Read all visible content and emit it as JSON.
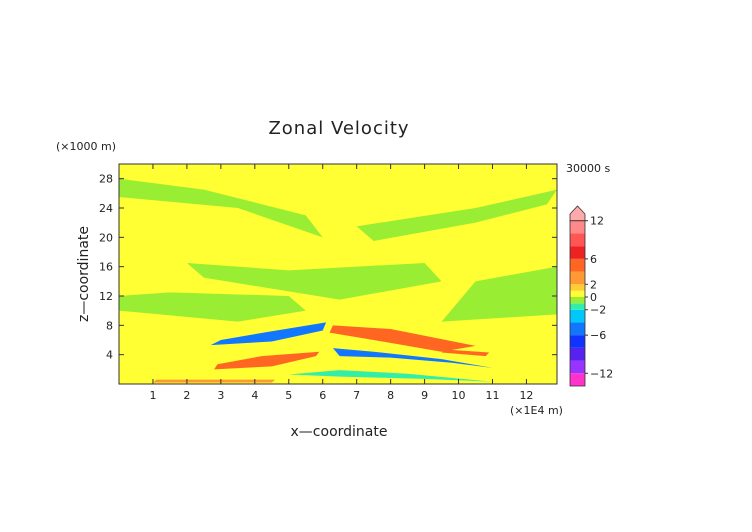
{
  "chart_data": {
    "type": "heatmap",
    "title": "Zonal Velocity",
    "xlabel": "x—coordinate",
    "ylabel": "z—coordinate",
    "x_unit": "(×1E4 m)",
    "y_unit": "(×1000 m)",
    "time_label": "30000 s",
    "xlim": [
      0,
      12.9
    ],
    "ylim": [
      0,
      30
    ],
    "x_ticks": [
      "1",
      "2",
      "3",
      "4",
      "5",
      "6",
      "7",
      "8",
      "9",
      "10",
      "11",
      "12"
    ],
    "y_ticks": [
      "4",
      "8",
      "12",
      "16",
      "20",
      "24",
      "28"
    ],
    "colorbar": {
      "tick_labels": [
        "12",
        "6",
        "2",
        "0",
        "−2",
        "−6",
        "−12"
      ],
      "levels": [
        {
          "min": -14,
          "max": -12,
          "color": "#ff33cc"
        },
        {
          "min": -12,
          "max": -10,
          "color": "#9933ff"
        },
        {
          "min": -10,
          "max": -8,
          "color": "#5522ee"
        },
        {
          "min": -8,
          "max": -6,
          "color": "#1133ff"
        },
        {
          "min": -6,
          "max": -4,
          "color": "#1177ff"
        },
        {
          "min": -4,
          "max": -2,
          "color": "#00c8ff"
        },
        {
          "min": -2,
          "max": -1,
          "color": "#33eeaa"
        },
        {
          "min": -1,
          "max": 0,
          "color": "#99ee33"
        },
        {
          "min": 0,
          "max": 1,
          "color": "#ffff33"
        },
        {
          "min": 1,
          "max": 2,
          "color": "#ffcc33"
        },
        {
          "min": 2,
          "max": 4,
          "color": "#ff9933"
        },
        {
          "min": 4,
          "max": 6,
          "color": "#ff6622"
        },
        {
          "min": 6,
          "max": 8,
          "color": "#ee2222"
        },
        {
          "min": 8,
          "max": 10,
          "color": "#ff5555"
        },
        {
          "min": 10,
          "max": 12,
          "color": "#ff8888"
        },
        {
          "min": 12,
          "max": 14,
          "color": "#ffaaaa"
        }
      ]
    },
    "background_color": "#ffff33",
    "features": [
      {
        "x": [
          7.5,
          10.5,
          12.6,
          12.9,
          10.5,
          7.0
        ],
        "z": [
          19.5,
          22.0,
          24.5,
          26.5,
          24.0,
          21.5
        ],
        "value": -0.5
      },
      {
        "x": [
          0,
          3.5,
          6.0,
          5.5,
          2.5,
          0
        ],
        "z": [
          25.5,
          24.0,
          20.0,
          23.0,
          26.5,
          28.0
        ],
        "value": -0.5
      },
      {
        "x": [
          2.5,
          6.5,
          9.5,
          9.0,
          5.0,
          2.0
        ],
        "z": [
          14.5,
          11.5,
          14.0,
          16.5,
          15.5,
          16.5
        ],
        "value": -0.5
      },
      {
        "x": [
          0,
          3.5,
          5.5,
          5.0,
          1.5,
          0
        ],
        "z": [
          10.0,
          8.5,
          10.0,
          12.0,
          12.5,
          12.0
        ],
        "value": -0.5
      },
      {
        "x": [
          9.5,
          12.9,
          12.9,
          10.5
        ],
        "z": [
          8.5,
          9.5,
          16.0,
          14.0
        ],
        "value": -0.5
      },
      {
        "x": [
          2.7,
          4.5,
          6.0,
          6.1,
          4.5,
          3.0
        ],
        "z": [
          5.3,
          5.8,
          7.3,
          8.4,
          7.2,
          6.0
        ],
        "value": -4.5
      },
      {
        "x": [
          6.5,
          8.0,
          9.8,
          11.0,
          9.5,
          7.5,
          6.3
        ],
        "z": [
          3.8,
          3.6,
          2.9,
          2.2,
          3.4,
          4.4,
          4.9
        ],
        "value": -4.5
      },
      {
        "x": [
          5.0,
          6.5,
          9.0,
          11.0,
          8.5,
          6.5
        ],
        "z": [
          1.3,
          1.0,
          0.7,
          0.3,
          1.4,
          1.9
        ],
        "value": -1.5
      },
      {
        "x": [
          6.3,
          8.0,
          10.5,
          9.5,
          7.5,
          6.2
        ],
        "z": [
          8.0,
          7.5,
          5.2,
          4.4,
          6.0,
          7.0
        ],
        "value": 5.0
      },
      {
        "x": [
          2.8,
          4.5,
          5.8,
          5.9,
          4.2,
          2.9
        ],
        "z": [
          2.0,
          2.4,
          3.8,
          4.4,
          3.8,
          2.7
        ],
        "value": 5.0
      },
      {
        "x": [
          9.5,
          10.8,
          10.9,
          9.6
        ],
        "z": [
          4.3,
          3.8,
          4.3,
          4.7
        ],
        "value": 5.0
      },
      {
        "x": [
          1.0,
          4.5,
          4.6,
          1.1
        ],
        "z": [
          0.2,
          0.2,
          0.6,
          0.6
        ],
        "value": 3.0
      }
    ]
  }
}
